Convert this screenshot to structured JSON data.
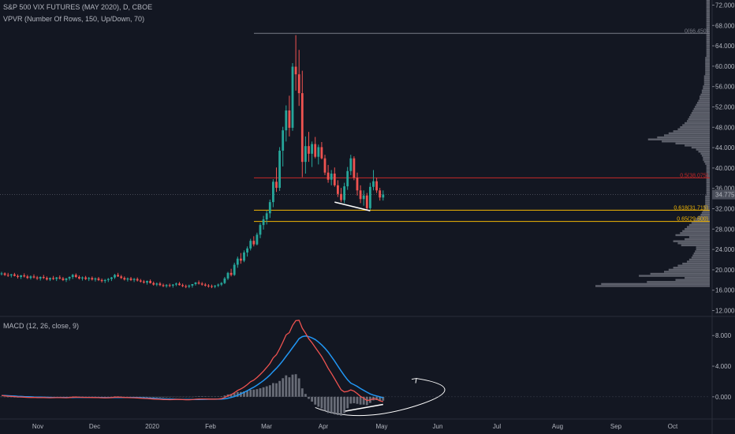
{
  "legend": {
    "symbol": "S&P 500 VIX FUTURES (MAY 2020), D, CBOE",
    "vpvr": "VPVR (Number Of Rows, 150, Up/Down, 70)",
    "macd": "MACD (12, 26, close, 9)"
  },
  "colors": {
    "background": "#131722",
    "up": "#26a69a",
    "down": "#ef5350",
    "macd_line": "#ef5350",
    "signal_line": "#2196f3",
    "histogram": "#787b86",
    "volume_profile": "#787b86",
    "fib_level": "#f2b705",
    "poc_level": "#c62828",
    "top_level": "#787b86",
    "annotation": "#ffffff"
  },
  "chart_data": [
    {
      "type": "candlestick",
      "title": "S&P 500 VIX FUTURES (MAY 2020), D, CBOE",
      "x_labels": [
        "Nov",
        "Dec",
        "2020",
        "Feb",
        "Mar",
        "Apr",
        "May",
        "Jun",
        "Jul",
        "Aug",
        "Sep",
        "Oct"
      ],
      "y_ticks": [
        "72.000",
        "68.000",
        "64.000",
        "60.000",
        "56.000",
        "52.000",
        "48.000",
        "44.000",
        "40.000",
        "36.000",
        "32.000",
        "28.000",
        "24.000",
        "20.000",
        "16.000",
        "12.000"
      ],
      "ylim": [
        11,
        73
      ],
      "last_price": "34.775",
      "levels": [
        {
          "label": "0(66.450)",
          "value": 66.45,
          "role": "top"
        },
        {
          "label": "0.5(38.075)",
          "value": 38.075,
          "role": "poc"
        },
        {
          "label": "0.618(31.715)",
          "value": 31.715,
          "role": "fib"
        },
        {
          "label": "0.65(29.500)",
          "value": 29.5,
          "role": "fib"
        }
      ],
      "ohlc": [
        [
          19.2,
          19.6,
          18.9,
          19.3
        ],
        [
          19.3,
          19.5,
          18.8,
          19.0
        ],
        [
          19.0,
          19.4,
          18.6,
          18.9
        ],
        [
          18.9,
          19.2,
          18.5,
          19.1
        ],
        [
          19.1,
          19.4,
          18.7,
          18.8
        ],
        [
          18.8,
          19.1,
          18.3,
          18.6
        ],
        [
          18.6,
          19.0,
          18.2,
          18.9
        ],
        [
          18.9,
          19.3,
          18.5,
          18.7
        ],
        [
          18.7,
          19.0,
          18.2,
          18.4
        ],
        [
          18.4,
          18.9,
          18.1,
          18.7
        ],
        [
          18.7,
          19.1,
          18.3,
          18.5
        ],
        [
          18.5,
          18.8,
          18.0,
          18.3
        ],
        [
          18.3,
          18.7,
          17.9,
          18.6
        ],
        [
          18.6,
          19.0,
          18.2,
          18.4
        ],
        [
          18.4,
          18.7,
          17.9,
          18.1
        ],
        [
          18.1,
          18.5,
          17.8,
          18.4
        ],
        [
          18.4,
          18.8,
          18.0,
          18.2
        ],
        [
          18.2,
          18.6,
          17.8,
          18.5
        ],
        [
          18.5,
          18.9,
          18.1,
          18.3
        ],
        [
          18.3,
          18.6,
          17.8,
          18.0
        ],
        [
          18.0,
          18.4,
          17.6,
          18.3
        ],
        [
          18.3,
          18.7,
          17.9,
          18.6
        ],
        [
          18.6,
          19.2,
          18.2,
          19.0
        ],
        [
          19.0,
          19.3,
          18.4,
          18.6
        ],
        [
          18.6,
          18.9,
          18.1,
          18.3
        ],
        [
          18.3,
          18.7,
          17.9,
          18.5
        ],
        [
          18.5,
          18.8,
          18.0,
          18.2
        ],
        [
          18.2,
          18.6,
          17.8,
          18.4
        ],
        [
          18.4,
          18.7,
          17.9,
          18.1
        ],
        [
          18.1,
          18.5,
          17.7,
          18.3
        ],
        [
          18.3,
          18.6,
          17.8,
          18.0
        ],
        [
          18.0,
          18.3,
          17.5,
          17.8
        ],
        [
          17.8,
          18.2,
          17.4,
          18.0
        ],
        [
          18.0,
          18.4,
          17.6,
          18.2
        ],
        [
          18.2,
          18.6,
          17.8,
          18.5
        ],
        [
          18.5,
          19.2,
          18.2,
          19.0
        ],
        [
          19.0,
          19.4,
          18.6,
          18.7
        ],
        [
          18.7,
          19.0,
          18.2,
          18.4
        ],
        [
          18.4,
          18.7,
          17.9,
          18.1
        ],
        [
          18.1,
          18.5,
          17.7,
          18.3
        ],
        [
          18.3,
          18.6,
          17.8,
          18.0
        ],
        [
          18.0,
          18.4,
          17.6,
          18.2
        ],
        [
          18.2,
          18.5,
          17.7,
          17.9
        ],
        [
          17.9,
          18.2,
          17.5,
          17.7
        ],
        [
          17.7,
          18.0,
          17.3,
          17.5
        ],
        [
          17.5,
          17.9,
          17.1,
          17.8
        ],
        [
          17.8,
          18.1,
          17.3,
          17.4
        ],
        [
          17.4,
          17.7,
          16.9,
          17.1
        ],
        [
          17.1,
          17.5,
          16.8,
          17.3
        ],
        [
          17.3,
          17.6,
          16.8,
          17.0
        ],
        [
          17.0,
          17.3,
          16.6,
          16.8
        ],
        [
          16.8,
          17.2,
          16.5,
          17.0
        ],
        [
          17.0,
          17.3,
          16.6,
          16.9
        ],
        [
          16.9,
          17.2,
          16.5,
          17.1
        ],
        [
          17.1,
          17.5,
          16.8,
          17.3
        ],
        [
          17.3,
          17.6,
          16.9,
          17.0
        ],
        [
          17.0,
          17.3,
          16.6,
          16.8
        ],
        [
          16.8,
          17.1,
          16.4,
          16.7
        ],
        [
          16.7,
          17.1,
          16.4,
          16.9
        ],
        [
          16.9,
          17.2,
          16.5,
          17.2
        ],
        [
          17.2,
          17.6,
          16.9,
          17.5
        ],
        [
          17.5,
          17.9,
          17.1,
          17.3
        ],
        [
          17.3,
          17.6,
          16.9,
          17.1
        ],
        [
          17.1,
          17.4,
          16.7,
          16.9
        ],
        [
          16.9,
          17.2,
          16.5,
          16.8
        ],
        [
          16.8,
          17.1,
          16.4,
          16.7
        ],
        [
          16.7,
          17.0,
          16.4,
          16.9
        ],
        [
          16.9,
          17.3,
          16.6,
          17.1
        ],
        [
          17.1,
          17.6,
          16.8,
          17.4
        ],
        [
          17.4,
          18.6,
          17.2,
          18.3
        ],
        [
          18.3,
          19.6,
          18.0,
          19.4
        ],
        [
          19.4,
          20.2,
          18.7,
          19.0
        ],
        [
          19.0,
          21.4,
          18.8,
          21.0
        ],
        [
          21.0,
          22.6,
          20.4,
          22.2
        ],
        [
          22.2,
          23.3,
          21.2,
          21.8
        ],
        [
          21.8,
          23.8,
          21.5,
          23.4
        ],
        [
          23.4,
          24.6,
          22.6,
          24.2
        ],
        [
          24.2,
          26.1,
          23.8,
          25.7
        ],
        [
          25.7,
          26.6,
          24.6,
          25.0
        ],
        [
          25.0,
          27.3,
          24.8,
          26.9
        ],
        [
          26.9,
          29.2,
          26.2,
          28.8
        ],
        [
          28.8,
          30.6,
          27.9,
          29.9
        ],
        [
          29.9,
          31.6,
          28.9,
          31.1
        ],
        [
          31.1,
          33.8,
          30.2,
          33.3
        ],
        [
          33.3,
          37.8,
          32.3,
          37.3
        ],
        [
          37.3,
          40.1,
          35.3,
          36.1
        ],
        [
          36.1,
          44.1,
          35.5,
          43.4
        ],
        [
          43.4,
          48.1,
          40.3,
          47.4
        ],
        [
          47.4,
          52.3,
          45.2,
          51.3
        ],
        [
          51.3,
          54.2,
          46.2,
          47.9
        ],
        [
          47.9,
          60.6,
          47.3,
          59.9
        ],
        [
          59.9,
          66.1,
          55.2,
          58.4
        ],
        [
          58.4,
          63.2,
          52.2,
          54.7
        ],
        [
          54.7,
          59.1,
          38.2,
          41.2
        ],
        [
          41.2,
          46.2,
          38.9,
          44.3
        ],
        [
          44.3,
          47.1,
          41.2,
          42.8
        ],
        [
          42.8,
          45.2,
          40.2,
          44.7
        ],
        [
          44.7,
          46.1,
          41.9,
          42.2
        ],
        [
          42.2,
          44.6,
          40.7,
          44.1
        ],
        [
          44.1,
          45.1,
          41.7,
          41.9
        ],
        [
          41.9,
          42.6,
          38.6,
          39.1
        ],
        [
          39.1,
          40.6,
          37.1,
          37.7
        ],
        [
          37.7,
          39.6,
          36.6,
          38.9
        ],
        [
          38.9,
          40.1,
          36.3,
          36.6
        ],
        [
          36.6,
          37.6,
          34.3,
          34.9
        ],
        [
          34.9,
          36.1,
          33.3,
          33.7
        ],
        [
          33.7,
          37.1,
          33.1,
          36.4
        ],
        [
          36.4,
          40.2,
          35.7,
          39.4
        ],
        [
          39.4,
          42.6,
          38.6,
          41.9
        ],
        [
          41.9,
          42.3,
          37.6,
          38.1
        ],
        [
          38.1,
          39.1,
          34.6,
          35.6
        ],
        [
          35.6,
          36.6,
          33.1,
          33.9
        ],
        [
          33.9,
          35.6,
          32.6,
          34.6
        ],
        [
          34.6,
          35.1,
          31.6,
          32.1
        ],
        [
          32.1,
          37.1,
          31.8,
          36.3
        ],
        [
          36.3,
          39.6,
          35.6,
          37.4
        ],
        [
          37.4,
          38.1,
          35.1,
          35.6
        ],
        [
          35.6,
          36.1,
          33.6,
          34.2
        ],
        [
          34.2,
          35.6,
          33.6,
          34.8
        ]
      ]
    },
    {
      "type": "bar",
      "title": "VPVR (Number Of Rows, 150, Up/Down, 70)",
      "ylim": [
        11,
        73
      ],
      "bin_size": 0.4,
      "y_bins_start": 16.6,
      "volume": [
        100,
        95,
        55,
        30,
        22,
        62,
        52,
        40,
        36,
        32,
        28,
        24,
        20,
        18,
        16,
        15,
        14,
        13,
        12,
        12,
        25,
        28,
        32,
        22,
        18,
        30,
        26,
        24,
        22,
        20,
        18,
        16,
        14,
        12,
        10,
        8,
        7,
        6,
        5,
        5,
        4,
        4,
        4,
        4,
        4,
        3,
        3,
        3,
        3,
        3,
        3,
        3,
        3,
        3,
        3,
        3,
        3,
        3,
        3,
        3,
        4,
        5,
        6,
        6,
        7,
        8,
        10,
        12,
        16,
        22,
        30,
        42,
        54,
        46,
        40,
        36,
        32,
        28,
        26,
        24,
        22,
        20,
        19,
        18,
        17,
        16,
        15,
        14,
        13,
        12,
        11,
        10,
        9,
        9,
        8,
        7,
        7,
        6,
        6,
        5,
        5,
        5,
        5,
        5,
        4,
        4,
        4,
        4,
        4,
        4,
        4,
        4,
        4,
        3,
        3,
        3,
        3,
        3,
        3,
        3,
        3,
        3,
        3,
        3,
        3,
        3,
        3,
        3,
        3,
        3,
        3,
        3,
        3,
        3,
        3,
        3,
        3,
        3,
        3,
        3,
        3,
        3,
        3,
        3,
        3,
        3,
        3,
        3,
        3,
        3
      ]
    },
    {
      "type": "line",
      "title": "MACD (12, 26, close, 9)",
      "y_ticks": [
        "8.000",
        "4.000",
        "0.000"
      ],
      "ylim": [
        -2.8,
        10.5
      ],
      "series": [
        {
          "name": "MACD",
          "values": [
            0.18,
            0.12,
            0.08,
            0.06,
            0.02,
            -0.02,
            -0.03,
            -0.05,
            -0.08,
            -0.09,
            -0.08,
            -0.1,
            -0.11,
            -0.1,
            -0.12,
            -0.13,
            -0.12,
            -0.11,
            -0.11,
            -0.12,
            -0.13,
            -0.1,
            -0.05,
            -0.04,
            -0.06,
            -0.07,
            -0.08,
            -0.08,
            -0.09,
            -0.1,
            -0.11,
            -0.13,
            -0.14,
            -0.13,
            -0.1,
            -0.05,
            -0.04,
            -0.06,
            -0.09,
            -0.1,
            -0.12,
            -0.13,
            -0.15,
            -0.18,
            -0.21,
            -0.22,
            -0.25,
            -0.29,
            -0.3,
            -0.33,
            -0.36,
            -0.37,
            -0.38,
            -0.37,
            -0.35,
            -0.35,
            -0.37,
            -0.39,
            -0.39,
            -0.37,
            -0.32,
            -0.29,
            -0.28,
            -0.28,
            -0.29,
            -0.3,
            -0.3,
            -0.28,
            -0.24,
            -0.09,
            0.13,
            0.27,
            0.53,
            0.83,
            1.02,
            1.28,
            1.59,
            1.96,
            2.18,
            2.52,
            2.92,
            3.36,
            3.84,
            4.36,
            5.09,
            5.5,
            6.27,
            7.15,
            8.09,
            8.39,
            9.33,
            9.94,
            10.0,
            8.96,
            8.31,
            7.59,
            7.07,
            6.46,
            5.86,
            5.25,
            4.51,
            3.73,
            3.07,
            2.36,
            1.62,
            0.92,
            0.63,
            0.71,
            0.9,
            0.74,
            0.43,
            0.06,
            -0.18,
            -0.49,
            -0.42,
            -0.25,
            -0.32,
            -0.52,
            -0.64
          ]
        },
        {
          "name": "Signal",
          "values": [
            0.17,
            0.16,
            0.14,
            0.12,
            0.1,
            0.07,
            0.05,
            0.03,
            0.01,
            -0.01,
            -0.03,
            -0.04,
            -0.05,
            -0.06,
            -0.07,
            -0.08,
            -0.09,
            -0.09,
            -0.1,
            -0.1,
            -0.1,
            -0.1,
            -0.09,
            -0.08,
            -0.08,
            -0.08,
            -0.08,
            -0.08,
            -0.08,
            -0.08,
            -0.09,
            -0.1,
            -0.11,
            -0.11,
            -0.11,
            -0.1,
            -0.09,
            -0.09,
            -0.09,
            -0.09,
            -0.1,
            -0.1,
            -0.11,
            -0.12,
            -0.14,
            -0.16,
            -0.18,
            -0.2,
            -0.22,
            -0.24,
            -0.27,
            -0.29,
            -0.31,
            -0.32,
            -0.33,
            -0.34,
            -0.35,
            -0.36,
            -0.36,
            -0.36,
            -0.36,
            -0.35,
            -0.34,
            -0.33,
            -0.32,
            -0.32,
            -0.32,
            -0.31,
            -0.3,
            -0.26,
            -0.18,
            -0.09,
            0.04,
            0.2,
            0.39,
            0.58,
            0.8,
            1.04,
            1.25,
            1.52,
            1.81,
            2.12,
            2.47,
            2.85,
            3.3,
            3.73,
            4.2,
            4.72,
            5.29,
            5.84,
            6.43,
            6.99,
            7.59,
            7.86,
            7.94,
            7.86,
            7.7,
            7.48,
            7.16,
            6.78,
            6.34,
            5.85,
            5.26,
            4.66,
            4.01,
            3.38,
            2.78,
            2.22,
            1.79,
            1.58,
            1.35,
            1.08,
            0.84,
            0.6,
            0.38,
            0.22,
            0.11,
            -0.01,
            -0.13
          ]
        }
      ]
    }
  ]
}
